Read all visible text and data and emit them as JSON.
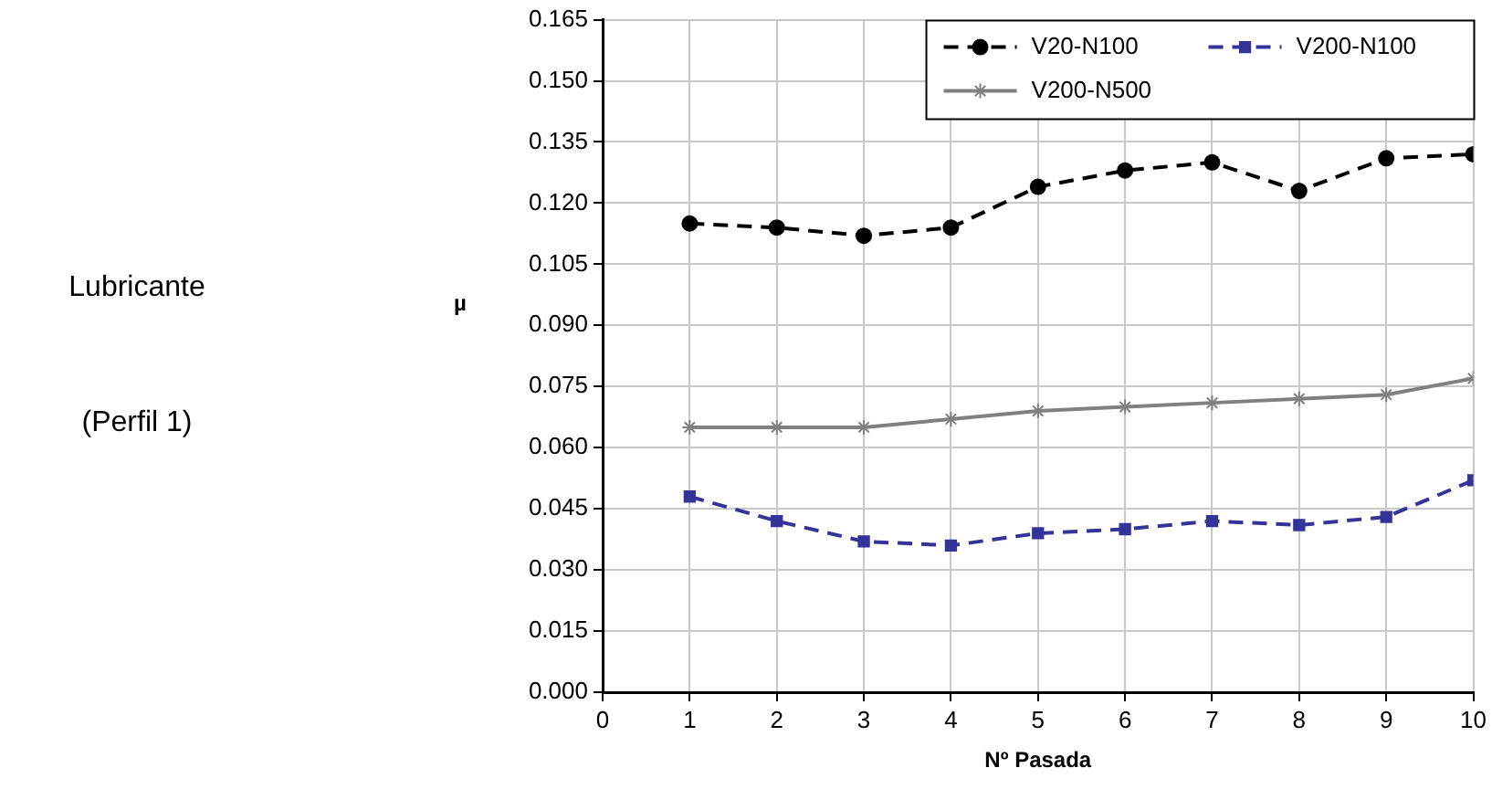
{
  "chart_data": {
    "type": "line",
    "xlabel": "Nº Pasada",
    "ylabel": "µ",
    "annotations": [
      "Lubricante",
      "(Perfil 1)"
    ],
    "x": [
      1,
      2,
      3,
      4,
      5,
      6,
      7,
      8,
      9,
      10
    ],
    "series": [
      {
        "name": "V20-N100",
        "color": "#000000",
        "marker": "circle",
        "line_style": "dashed",
        "values": [
          0.115,
          0.114,
          0.112,
          0.114,
          0.124,
          0.128,
          0.13,
          0.123,
          0.131,
          0.132
        ]
      },
      {
        "name": "V200-N100",
        "color": "#333399",
        "marker": "square",
        "line_style": "dashed",
        "values": [
          0.048,
          0.042,
          0.037,
          0.036,
          0.039,
          0.04,
          0.042,
          0.041,
          0.043,
          0.052
        ]
      },
      {
        "name": "V200-N500",
        "color": "#808080",
        "marker": "cross",
        "line_style": "solid",
        "values": [
          0.065,
          0.065,
          0.065,
          0.067,
          0.069,
          0.07,
          0.071,
          0.072,
          0.073,
          0.077
        ]
      }
    ],
    "xlim": [
      0,
      10
    ],
    "xticks": [
      0,
      1,
      2,
      3,
      4,
      5,
      6,
      7,
      8,
      9,
      10
    ],
    "ylim": [
      0,
      0.165
    ],
    "yticks": [
      {
        "value": 0,
        "label": "0.000"
      },
      {
        "value": 0.015,
        "label": "0.015"
      },
      {
        "value": 0.03,
        "label": "0.030"
      },
      {
        "value": 0.045,
        "label": "0.045"
      },
      {
        "value": 0.06,
        "label": "0.060"
      },
      {
        "value": 0.075,
        "label": "0.075"
      },
      {
        "value": 0.09,
        "label": "0.090"
      },
      {
        "value": 0.105,
        "label": "0.105"
      },
      {
        "value": 0.12,
        "label": "0.120"
      },
      {
        "value": 0.135,
        "label": "0.135"
      },
      {
        "value": 0.15,
        "label": "0.150"
      },
      {
        "value": 0.165,
        "label": "0.165"
      }
    ],
    "grid": true,
    "legend": "top right"
  }
}
